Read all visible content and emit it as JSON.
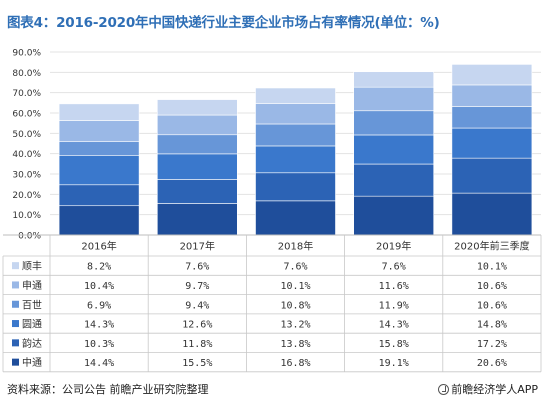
{
  "header": {
    "title": "图表4：2016-2020年中国快递行业主要企业市场占有率情况(单位：%)"
  },
  "footer": {
    "source": "资料来源：公司公告 前瞻产业研究院整理",
    "brand": "前瞻经济学人APP"
  },
  "chart_data": {
    "type": "bar",
    "stacked": true,
    "title": "",
    "xlabel": "",
    "ylabel": "",
    "ylim": [
      0,
      90
    ],
    "y_ticks": [
      "0.0%",
      "10.0%",
      "20.0%",
      "30.0%",
      "40.0%",
      "50.0%",
      "60.0%",
      "70.0%",
      "80.0%",
      "90.0%"
    ],
    "grid": true,
    "legend_placement": "table-left",
    "categories": [
      "2016年",
      "2017年",
      "2018年",
      "2019年",
      "2020年前三季度"
    ],
    "series": [
      {
        "name": "中通",
        "color": "#1f4e9b",
        "values": [
          14.4,
          15.5,
          16.8,
          19.1,
          20.6
        ],
        "labels": [
          "14.4%",
          "15.5%",
          "16.8%",
          "19.1%",
          "20.6%"
        ]
      },
      {
        "name": "韵达",
        "color": "#2c63b5",
        "values": [
          10.3,
          11.8,
          13.8,
          15.8,
          17.2
        ],
        "labels": [
          "10.3%",
          "11.8%",
          "13.8%",
          "15.8%",
          "17.2%"
        ]
      },
      {
        "name": "圆通",
        "color": "#3a78cc",
        "values": [
          14.3,
          12.6,
          13.2,
          14.3,
          14.8
        ],
        "labels": [
          "14.3%",
          "12.6%",
          "13.2%",
          "14.3%",
          "14.8%"
        ]
      },
      {
        "name": "百世",
        "color": "#6796d8",
        "values": [
          6.9,
          9.4,
          10.8,
          11.9,
          10.6
        ],
        "labels": [
          "6.9%",
          "9.4%",
          "10.8%",
          "11.9%",
          "10.6%"
        ]
      },
      {
        "name": "申通",
        "color": "#9ab8e6",
        "values": [
          10.4,
          9.7,
          10.1,
          11.6,
          10.6
        ],
        "labels": [
          "10.4%",
          "9.7%",
          "10.1%",
          "11.6%",
          "10.6%"
        ]
      },
      {
        "name": "顺丰",
        "color": "#c6d6f0",
        "values": [
          8.2,
          7.6,
          7.6,
          7.6,
          10.1
        ],
        "labels": [
          "8.2%",
          "7.6%",
          "7.6%",
          "7.6%",
          "10.1%"
        ]
      }
    ]
  }
}
